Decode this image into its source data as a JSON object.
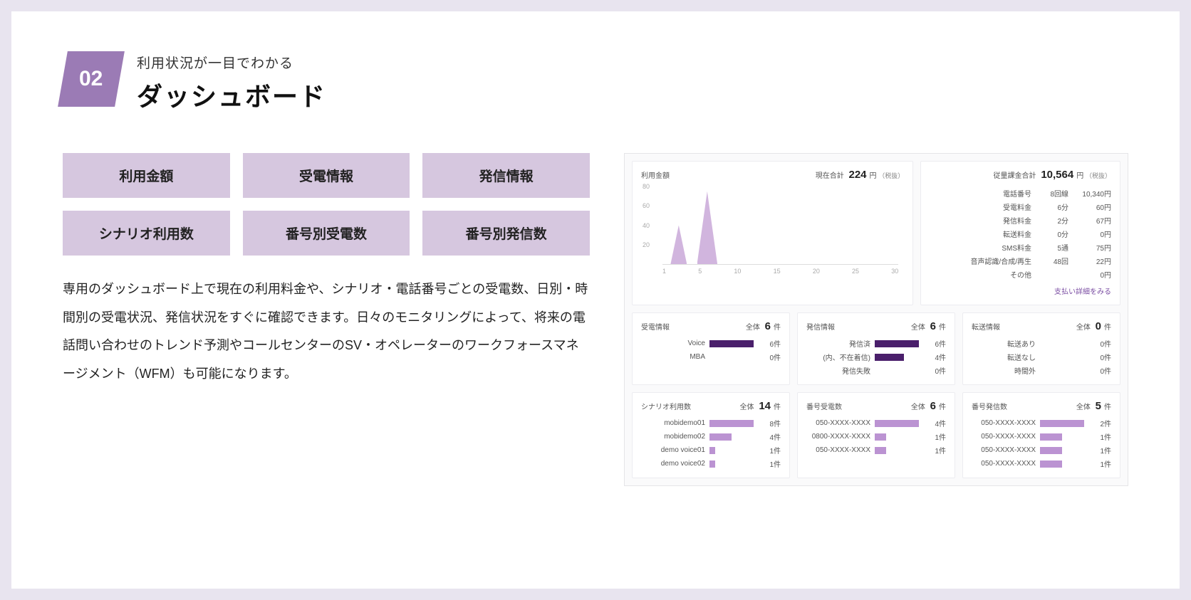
{
  "header": {
    "badge": "02",
    "subtitle": "利用状況が一目でわかる",
    "title": "ダッシュボード"
  },
  "buttons": [
    "利用金額",
    "受電情報",
    "発信情報",
    "シナリオ利用数",
    "番号別受電数",
    "番号別発信数"
  ],
  "description": "専用のダッシュボード上で現在の利用料金や、シナリオ・電話番号ごとの受電数、日別・時間別の受電状況、発信状況をすぐに確認できます。日々のモニタリングによって、将来の電話問い合わせのトレンド予測やコールセンターのSV・オペレーターのワークフォースマネージメント（WFM）も可能になります。",
  "colors": {
    "accent": "#9b7bb5",
    "button_bg": "#d6c7df",
    "chart_fill": "#c9a8d8",
    "bar_dark": "#4a1f6b",
    "bar_light": "#bb93d2",
    "link": "#7b4ea3",
    "border": "#ececf0"
  },
  "chart": {
    "title": "利用金額",
    "total_label": "現在合計",
    "total_value": "224",
    "total_unit": "円",
    "note": "（税抜）",
    "y_ticks": [
      80,
      60,
      40,
      20
    ],
    "x_ticks": [
      1,
      5,
      10,
      15,
      20,
      25,
      30
    ],
    "x_max": 30,
    "y_max": 80,
    "peaks": [
      {
        "x": 3,
        "h": 40,
        "w": 2
      },
      {
        "x": 6.5,
        "h": 75,
        "w": 2.5
      }
    ],
    "fill_color": "#c9a8d8"
  },
  "costs": {
    "title": "従量課金合計",
    "total": "10,564",
    "unit": "円",
    "note": "（税抜）",
    "rows": [
      {
        "label": "電話番号",
        "mid": "8回線",
        "val": "10,340円"
      },
      {
        "label": "受電料金",
        "mid": "6分",
        "val": "60円"
      },
      {
        "label": "発信料金",
        "mid": "2分",
        "val": "67円"
      },
      {
        "label": "転送料金",
        "mid": "0分",
        "val": "0円"
      },
      {
        "label": "SMS料金",
        "mid": "5通",
        "val": "75円"
      },
      {
        "label": "音声認識/合成/再生",
        "mid": "48回",
        "val": "22円"
      },
      {
        "label": "その他",
        "mid": "",
        "val": "0円"
      }
    ],
    "link": "支払い詳細をみる"
  },
  "mid_panels": [
    {
      "title": "受電情報",
      "total_label": "全体",
      "total": "6",
      "unit": "件",
      "bar_color": "#4a1f6b",
      "max": 6,
      "items": [
        {
          "label": "Voice",
          "value": 6,
          "text": "6件"
        },
        {
          "label": "MBA",
          "value": 0,
          "text": "0件"
        }
      ]
    },
    {
      "title": "発信情報",
      "total_label": "全体",
      "total": "6",
      "unit": "件",
      "bar_color": "#4a1f6b",
      "max": 6,
      "items": [
        {
          "label": "発信済",
          "value": 6,
          "text": "6件"
        },
        {
          "label": "(内、不在着信)",
          "value": 4,
          "text": "4件"
        },
        {
          "label": "発信失敗",
          "value": 0,
          "text": "0件"
        }
      ]
    },
    {
      "title": "転送情報",
      "total_label": "全体",
      "total": "0",
      "unit": "件",
      "bar_color": "#4a1f6b",
      "max": 1,
      "items": [
        {
          "label": "転送あり",
          "value": 0,
          "text": "0件"
        },
        {
          "label": "転送なし",
          "value": 0,
          "text": "0件"
        },
        {
          "label": "時間外",
          "value": 0,
          "text": "0件"
        }
      ]
    }
  ],
  "bot_panels": [
    {
      "title": "シナリオ利用数",
      "total_label": "全体",
      "total": "14",
      "unit": "件",
      "bar_color": "#bb93d2",
      "max": 8,
      "items": [
        {
          "label": "mobidemo01",
          "value": 8,
          "text": "8件"
        },
        {
          "label": "mobidemo02",
          "value": 4,
          "text": "4件"
        },
        {
          "label": "demo voice01",
          "value": 1,
          "text": "1件"
        },
        {
          "label": "demo voice02",
          "value": 1,
          "text": "1件"
        }
      ]
    },
    {
      "title": "番号受電数",
      "total_label": "全体",
      "total": "6",
      "unit": "件",
      "bar_color": "#bb93d2",
      "max": 4,
      "items": [
        {
          "label": "050-XXXX-XXXX",
          "value": 4,
          "text": "4件"
        },
        {
          "label": "0800-XXXX-XXXX",
          "value": 1,
          "text": "1件"
        },
        {
          "label": "050-XXXX-XXXX",
          "value": 1,
          "text": "1件"
        }
      ]
    },
    {
      "title": "番号発信数",
      "total_label": "全体",
      "total": "5",
      "unit": "件",
      "bar_color": "#bb93d2",
      "max": 2,
      "items": [
        {
          "label": "050-XXXX-XXXX",
          "value": 2,
          "text": "2件"
        },
        {
          "label": "050-XXXX-XXXX",
          "value": 1,
          "text": "1件"
        },
        {
          "label": "050-XXXX-XXXX",
          "value": 1,
          "text": "1件"
        },
        {
          "label": "050-XXXX-XXXX",
          "value": 1,
          "text": "1件"
        }
      ]
    }
  ]
}
